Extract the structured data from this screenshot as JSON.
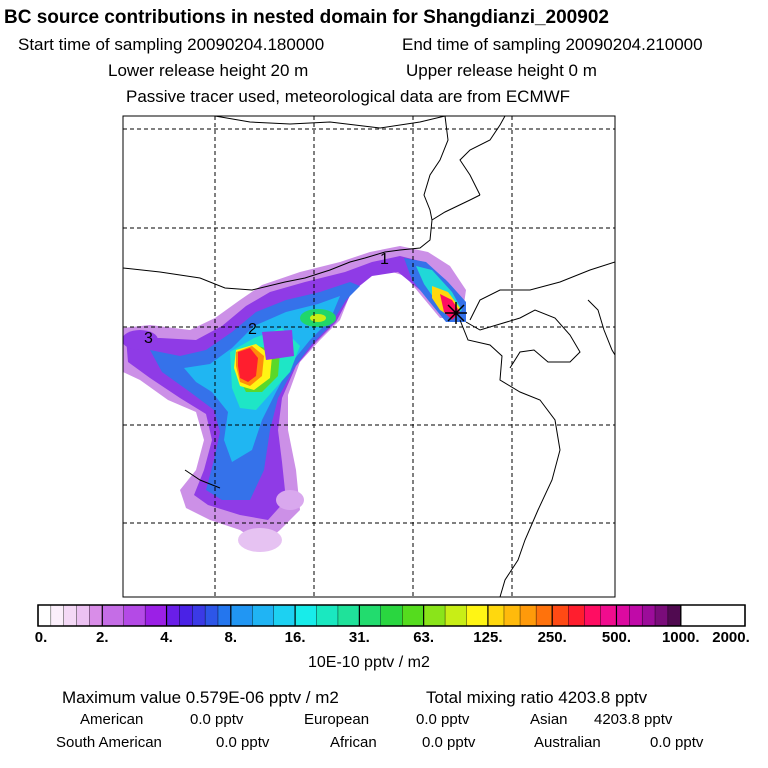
{
  "header": {
    "title": "BC  source contributions in nested domain for Shangdianzi_200902",
    "start_label": "Start time of sampling 20090204.180000",
    "end_label": "End time of sampling 20090204.210000",
    "lower_label": "Lower release height   20 m",
    "upper_label": "Upper release height    0 m",
    "tracer_note": "Passive tracer used, meteorological data are from ECMWF"
  },
  "map": {
    "point_labels": [
      "1",
      "2",
      "3"
    ]
  },
  "colorbar": {
    "tick_labels": [
      "0.",
      "2.",
      "4.",
      "8.",
      "16.",
      "31.",
      "63.",
      "125.",
      "250.",
      "500.",
      "1000.",
      "2000."
    ],
    "unit": "10E-10 pptv / m2",
    "colors": [
      "#ffffff",
      "#fbeffb",
      "#f4d9f6",
      "#ecc2f2",
      "#d98de8",
      "#c56de6",
      "#b44ae6",
      "#9b20e6",
      "#6a1ee8",
      "#4a22e6",
      "#3b3ae6",
      "#2d56e8",
      "#2476ee",
      "#2196f3",
      "#20b4f4",
      "#1dd1f2",
      "#18ecea",
      "#1ae8c0",
      "#1fe29a",
      "#22dc6e",
      "#2ad640",
      "#55dc1e",
      "#8ae41a",
      "#c8ee16",
      "#fff514",
      "#ffd80e",
      "#ffba0c",
      "#ff9a0a",
      "#ff720c",
      "#ff4a14",
      "#ff1e2e",
      "#ff0d62",
      "#f00c8e",
      "#dc0aa0",
      "#c00aa8",
      "#9c0c9a",
      "#7a0c7a",
      "#500a50"
    ],
    "segment_counts": [
      5,
      3,
      5,
      3,
      3,
      3,
      3,
      4,
      4,
      5
    ]
  },
  "stats": {
    "max_text": "Maximum value  0.579E-06 pptv / m2",
    "total_text": "Total mixing ratio     4203.8 pptv",
    "regions": [
      {
        "name": "American",
        "value": "0.0 pptv"
      },
      {
        "name": "European",
        "value": "0.0 pptv"
      },
      {
        "name": "Asian",
        "value": "4203.8 pptv"
      },
      {
        "name": "South American",
        "value": "0.0 pptv"
      },
      {
        "name": "African",
        "value": "0.0 pptv"
      },
      {
        "name": "Australian",
        "value": "0.0 pptv"
      }
    ]
  }
}
